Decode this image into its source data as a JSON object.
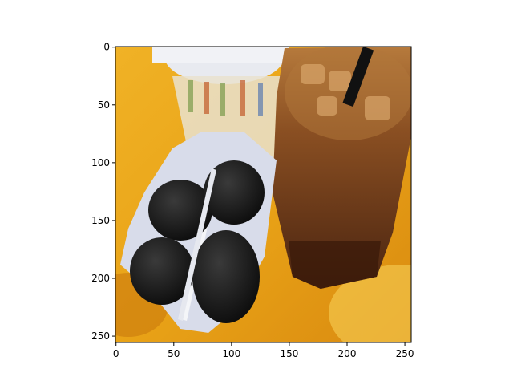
{
  "chart_data": {
    "type": "heatmap",
    "title": "",
    "xlabel": "",
    "ylabel": "",
    "xlim": [
      0,
      256
    ],
    "ylim": [
      256,
      0
    ],
    "x_ticks": [
      0,
      50,
      100,
      150,
      200,
      250
    ],
    "y_ticks": [
      0,
      50,
      100,
      150,
      200,
      250
    ],
    "image_content": "stylized photo: two dark pastries in a white paper bag beside an iced coffee glass with a black straw on an orange tray"
  },
  "colors": {
    "tray_orange": "#e9a317",
    "tray_light": "#f7cf55",
    "coffee_brown": "#6a3c1c",
    "coffee_light": "#a8682e",
    "bag_white": "#d8dcea",
    "pastry_dark": "#151515",
    "straw_black": "#111111",
    "napkin": "#e9e2cf"
  }
}
